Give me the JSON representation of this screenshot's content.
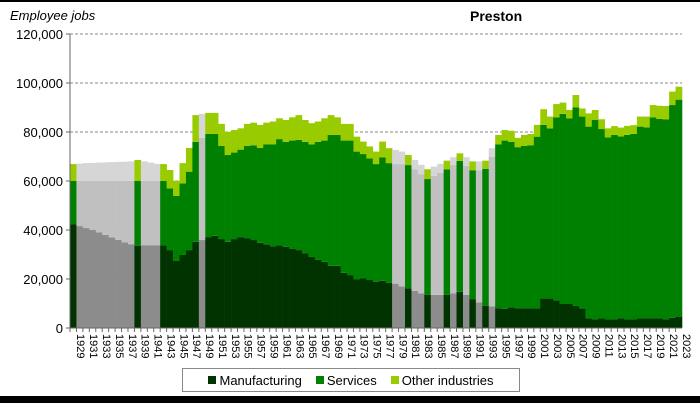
{
  "chart_data": {
    "type": "bar",
    "stacked": true,
    "title": "Preston",
    "ylabel": "Employee jobs",
    "xlabel": "",
    "ylim": [
      0,
      120000
    ],
    "yticks": [
      0,
      20000,
      40000,
      60000,
      80000,
      100000,
      120000
    ],
    "ytick_labels": [
      "0",
      "20,000",
      "40,000",
      "60,000",
      "80,000",
      "100,000",
      "120,000"
    ],
    "grid": "horizontal dashed",
    "legend": "bottom",
    "x_start": 1929,
    "x_end": 2023,
    "xtick_every": 2,
    "estimated_years": [
      1930,
      1931,
      1932,
      1933,
      1934,
      1935,
      1936,
      1937,
      1938,
      1940,
      1941,
      1942,
      1949,
      1979,
      1980,
      1982,
      1983,
      1985,
      1986,
      1988,
      1990,
      1992,
      1994
    ],
    "estimated_colors": {
      "manufacturing": "#8c8c8c",
      "services": "#c0c0c0",
      "other": "#d6d6d6"
    },
    "series": [
      {
        "name": "Manufacturing",
        "color": "#003300",
        "values": [
          42400,
          41600,
          40800,
          40000,
          39000,
          38000,
          37000,
          36000,
          35000,
          34200,
          33600,
          33800,
          33800,
          33800,
          33700,
          31800,
          27500,
          29800,
          31800,
          35200,
          35900,
          37100,
          37600,
          36300,
          35200,
          36300,
          37100,
          36700,
          35900,
          34800,
          34200,
          33400,
          33700,
          33100,
          32400,
          31800,
          30400,
          29000,
          27900,
          27000,
          25400,
          25400,
          22500,
          21600,
          19800,
          20200,
          19600,
          18900,
          19300,
          18500,
          18100,
          17000,
          16100,
          15200,
          14100,
          13500,
          13500,
          13500,
          13500,
          14100,
          14800,
          13500,
          11800,
          10400,
          9000,
          8800,
          8100,
          7800,
          8500,
          8100,
          8100,
          8100,
          8000,
          12100,
          12100,
          11200,
          9800,
          9800,
          9000,
          8000,
          3900,
          3500,
          3900,
          3500,
          3500,
          3900,
          3500,
          3500,
          3900,
          3900,
          3900,
          3900,
          3500,
          4200,
          4500
        ]
      },
      {
        "name": "Services",
        "color": "#008000",
        "values": [
          17600,
          18400,
          19200,
          20000,
          21000,
          22000,
          23000,
          24000,
          25000,
          25800,
          26400,
          26200,
          26200,
          26200,
          26300,
          25200,
          26400,
          29200,
          32000,
          40800,
          41700,
          42100,
          41600,
          38000,
          35400,
          35300,
          35700,
          37600,
          38700,
          38700,
          40800,
          41600,
          43400,
          42900,
          44100,
          45000,
          45600,
          46000,
          48100,
          49500,
          53400,
          53400,
          54000,
          54900,
          52200,
          50800,
          49600,
          48000,
          50300,
          48800,
          48800,
          49900,
          50400,
          49600,
          48700,
          47300,
          48600,
          49900,
          51300,
          52400,
          53400,
          52700,
          52600,
          54000,
          56000,
          61000,
          66900,
          68700,
          67500,
          65700,
          66200,
          66500,
          70100,
          70800,
          69400,
          74800,
          77600,
          75800,
          81100,
          78300,
          78300,
          81400,
          77300,
          74300,
          75300,
          74300,
          75300,
          75700,
          78300,
          78000,
          82100,
          81400,
          81700,
          86800,
          88700
        ]
      },
      {
        "name": "Other industries",
        "color": "#99cc00",
        "values": [
          6900,
          7100,
          7300,
          7400,
          7500,
          7600,
          7700,
          7800,
          7900,
          8000,
          8600,
          8000,
          7500,
          7000,
          6900,
          7500,
          6200,
          8300,
          9700,
          10900,
          9800,
          8600,
          8600,
          9000,
          9500,
          9200,
          8700,
          9000,
          9200,
          9400,
          8800,
          9300,
          8500,
          8900,
          9500,
          10100,
          8900,
          8600,
          8300,
          9100,
          8100,
          7200,
          6800,
          6800,
          6100,
          5100,
          4900,
          5100,
          6500,
          6100,
          5800,
          5100,
          4100,
          3800,
          3800,
          4000,
          3800,
          3600,
          3500,
          3200,
          3100,
          3500,
          3600,
          3600,
          3300,
          3600,
          3800,
          4300,
          4500,
          3800,
          4500,
          4600,
          4800,
          6400,
          4800,
          5400,
          4600,
          3400,
          5000,
          3300,
          5400,
          4100,
          4000,
          3700,
          3600,
          3600,
          3700,
          3600,
          4100,
          4400,
          5000,
          5400,
          5400,
          5500,
          5300
        ]
      }
    ]
  }
}
